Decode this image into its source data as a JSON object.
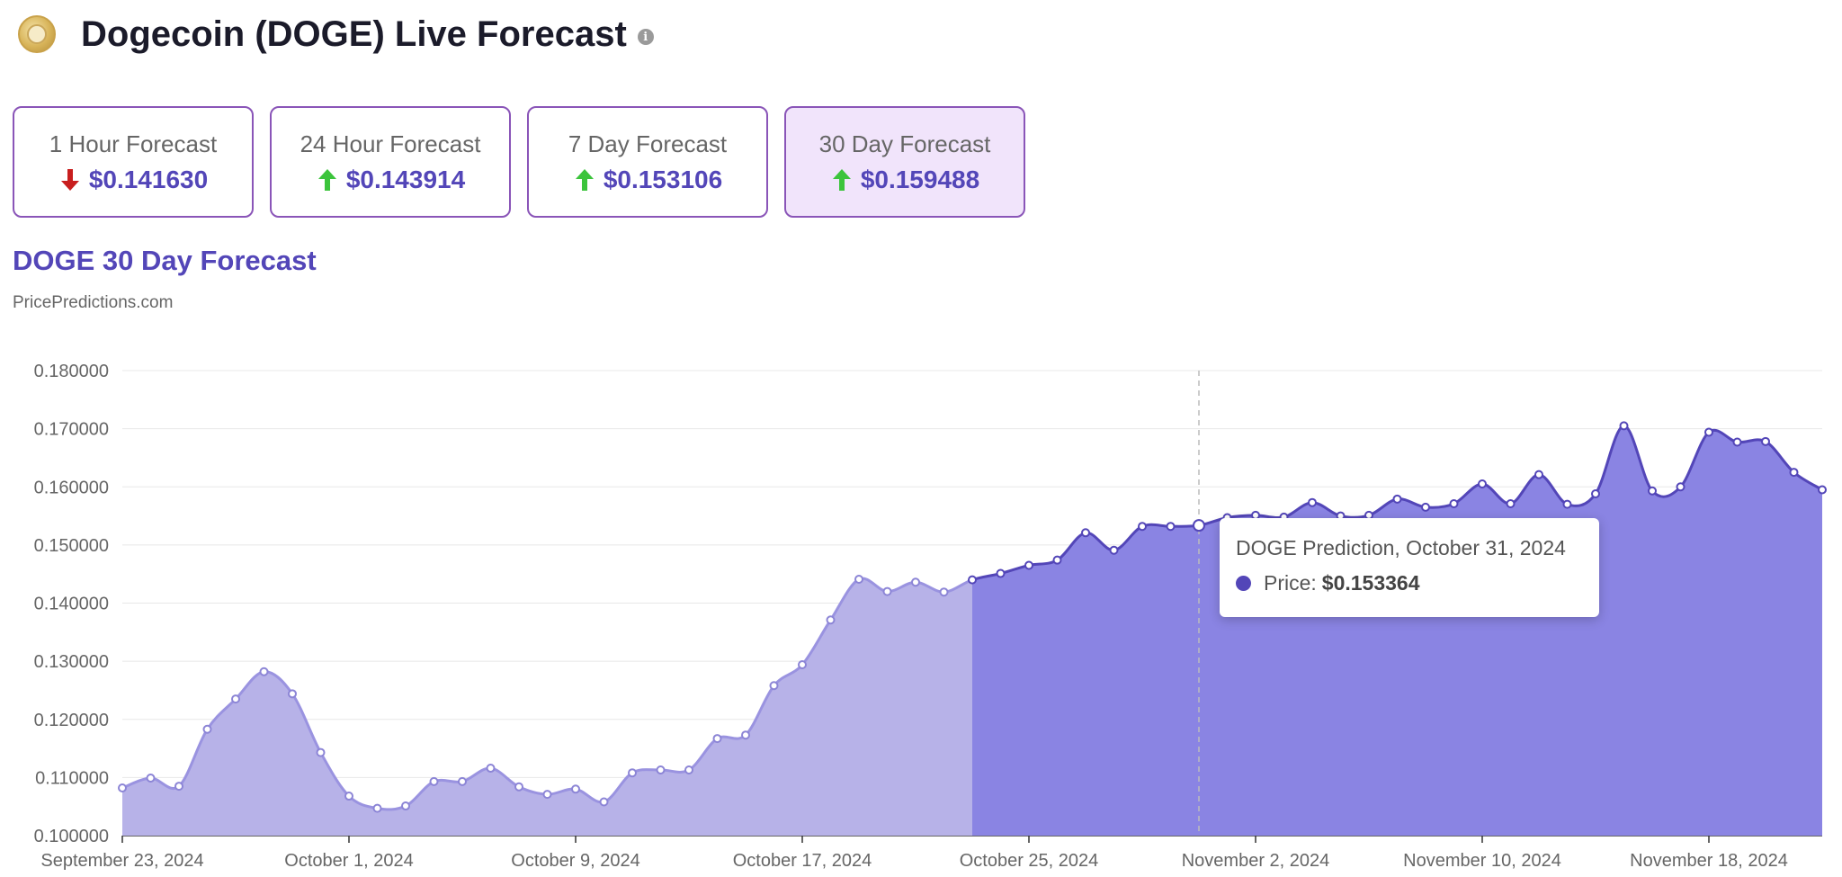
{
  "header": {
    "title": "Dogecoin (DOGE) Live Forecast",
    "logo_icon": "dogecoin-logo",
    "info_icon": "info-icon"
  },
  "cards": [
    {
      "label": "1 Hour Forecast",
      "value": "$0.141630",
      "direction": "down"
    },
    {
      "label": "24 Hour Forecast",
      "value": "$0.143914",
      "direction": "up"
    },
    {
      "label": "7 Day Forecast",
      "value": "$0.153106",
      "direction": "up"
    },
    {
      "label": "30 Day Forecast",
      "value": "$0.159488",
      "direction": "up",
      "active": true
    }
  ],
  "colors": {
    "accent": "#5346b8",
    "up": "#3cc43c",
    "down": "#c81e1e",
    "historical_fill": "#b7b2e8",
    "forecast_fill": "#8a84e3"
  },
  "chart_title": "DOGE 30 Day Forecast",
  "chart_source": "PricePredictions.com",
  "tooltip": {
    "title": "DOGE Prediction, October 31, 2024",
    "label": "Price:",
    "value": "$0.153364"
  },
  "chart_data": {
    "type": "area",
    "title": "DOGE 30 Day Forecast",
    "y_ticks": [
      "0.100000",
      "0.110000",
      "0.120000",
      "0.130000",
      "0.140000",
      "0.150000",
      "0.160000",
      "0.170000",
      "0.180000"
    ],
    "ylim": [
      0.1,
      0.18
    ],
    "x_ticks": [
      {
        "date": "2024-09-23",
        "label": "September 23, 2024"
      },
      {
        "date": "2024-10-01",
        "label": "October 1, 2024"
      },
      {
        "date": "2024-10-09",
        "label": "October 9, 2024"
      },
      {
        "date": "2024-10-17",
        "label": "October 17, 2024"
      },
      {
        "date": "2024-10-25",
        "label": "October 25, 2024"
      },
      {
        "date": "2024-11-02",
        "label": "November 2, 2024"
      },
      {
        "date": "2024-11-10",
        "label": "November 10, 2024"
      },
      {
        "date": "2024-11-18",
        "label": "November 18, 2024"
      }
    ],
    "xlim": [
      "2024-09-23",
      "2024-11-22"
    ],
    "forecast_start": "2024-10-23",
    "highlight_date": "2024-10-31",
    "grid": true,
    "series": [
      {
        "points": [
          [
            "2024-09-23",
            0.1082
          ],
          [
            "2024-09-24",
            0.1099
          ],
          [
            "2024-09-25",
            0.1085
          ],
          [
            "2024-09-26",
            0.1183
          ],
          [
            "2024-09-27",
            0.1235
          ],
          [
            "2024-09-28",
            0.1282
          ],
          [
            "2024-09-29",
            0.1244
          ],
          [
            "2024-09-30",
            0.1143
          ],
          [
            "2024-10-01",
            0.1068
          ],
          [
            "2024-10-02",
            0.1047
          ],
          [
            "2024-10-03",
            0.1051
          ],
          [
            "2024-10-04",
            0.1093
          ],
          [
            "2024-10-05",
            0.1093
          ],
          [
            "2024-10-06",
            0.1116
          ],
          [
            "2024-10-07",
            0.1084
          ],
          [
            "2024-10-08",
            0.1071
          ],
          [
            "2024-10-09",
            0.108
          ],
          [
            "2024-10-10",
            0.1058
          ],
          [
            "2024-10-11",
            0.1108
          ],
          [
            "2024-10-12",
            0.1113
          ],
          [
            "2024-10-13",
            0.1113
          ],
          [
            "2024-10-14",
            0.1167
          ],
          [
            "2024-10-15",
            0.1173
          ],
          [
            "2024-10-16",
            0.1258
          ],
          [
            "2024-10-17",
            0.1294
          ],
          [
            "2024-10-18",
            0.1371
          ],
          [
            "2024-10-19",
            0.1441
          ],
          [
            "2024-10-20",
            0.142
          ],
          [
            "2024-10-21",
            0.1436
          ],
          [
            "2024-10-22",
            0.1419
          ],
          [
            "2024-10-23",
            0.144
          ],
          [
            "2024-10-24",
            0.1451
          ],
          [
            "2024-10-25",
            0.1465
          ],
          [
            "2024-10-26",
            0.1474
          ],
          [
            "2024-10-27",
            0.1521
          ],
          [
            "2024-10-28",
            0.1491
          ],
          [
            "2024-10-29",
            0.1532
          ],
          [
            "2024-10-30",
            0.1532
          ],
          [
            "2024-10-31",
            0.153364
          ],
          [
            "2024-11-01",
            0.1547
          ],
          [
            "2024-11-02",
            0.1551
          ],
          [
            "2024-11-03",
            0.1548
          ],
          [
            "2024-11-04",
            0.1573
          ],
          [
            "2024-11-05",
            0.155
          ],
          [
            "2024-11-06",
            0.1551
          ],
          [
            "2024-11-07",
            0.1579
          ],
          [
            "2024-11-08",
            0.1565
          ],
          [
            "2024-11-09",
            0.1571
          ],
          [
            "2024-11-10",
            0.1605
          ],
          [
            "2024-11-11",
            0.1571
          ],
          [
            "2024-11-12",
            0.1621
          ],
          [
            "2024-11-13",
            0.157
          ],
          [
            "2024-11-14",
            0.1588
          ],
          [
            "2024-11-15",
            0.1705
          ],
          [
            "2024-11-16",
            0.1593
          ],
          [
            "2024-11-17",
            0.16
          ],
          [
            "2024-11-18",
            0.1694
          ],
          [
            "2024-11-19",
            0.1677
          ],
          [
            "2024-11-20",
            0.1678
          ],
          [
            "2024-11-21",
            0.1625
          ],
          [
            "2024-11-22",
            0.1595
          ]
        ]
      }
    ]
  }
}
